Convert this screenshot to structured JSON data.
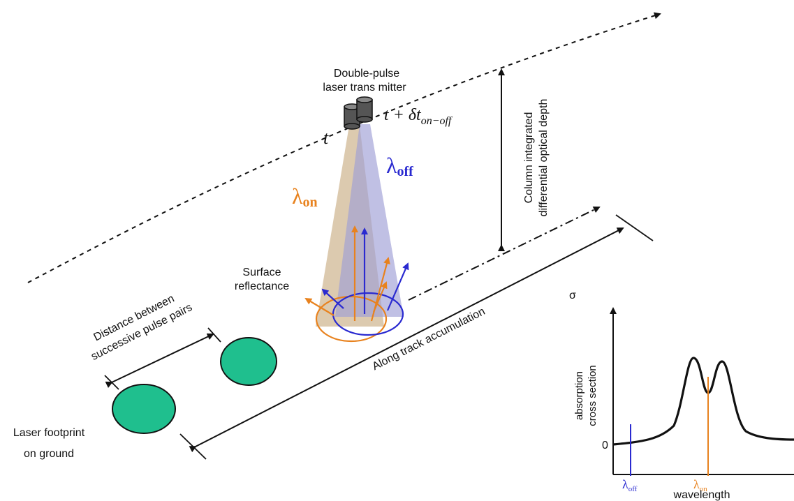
{
  "labels": {
    "transmitter_line1": "Double-pulse",
    "transmitter_line2": "laser trans mitter",
    "time_t": "t",
    "time_plus_prefix": "t + δt",
    "time_plus_sub": "on−off",
    "lambda_symbol": "λ",
    "lambda_on_sub": "on",
    "lambda_off_sub": "off",
    "column_line1": "Column integrated",
    "column_line2": "differential optical depth",
    "surface_line1": "Surface",
    "surface_line2": "reflectance",
    "distance_line1": "Distance between",
    "distance_line2": "successive pulse pairs",
    "along_track": "Along track accumulation",
    "footprint_line1": "Laser footprint",
    "footprint_line2": "on ground"
  },
  "inset": {
    "y_symbol": "σ",
    "ylabel_line1": "absorption",
    "ylabel_line2": "cross section",
    "zero_tick": "0",
    "xlabel": "wavelength",
    "lambda_symbol": "λ",
    "off_sub": "off",
    "on_sub": "on"
  },
  "colors": {
    "on": "#e8821e",
    "off": "#2a2ad0",
    "footprint": "#1fbf8e",
    "beam_on": "#cdb38d",
    "beam_off": "#9e9ed6"
  }
}
